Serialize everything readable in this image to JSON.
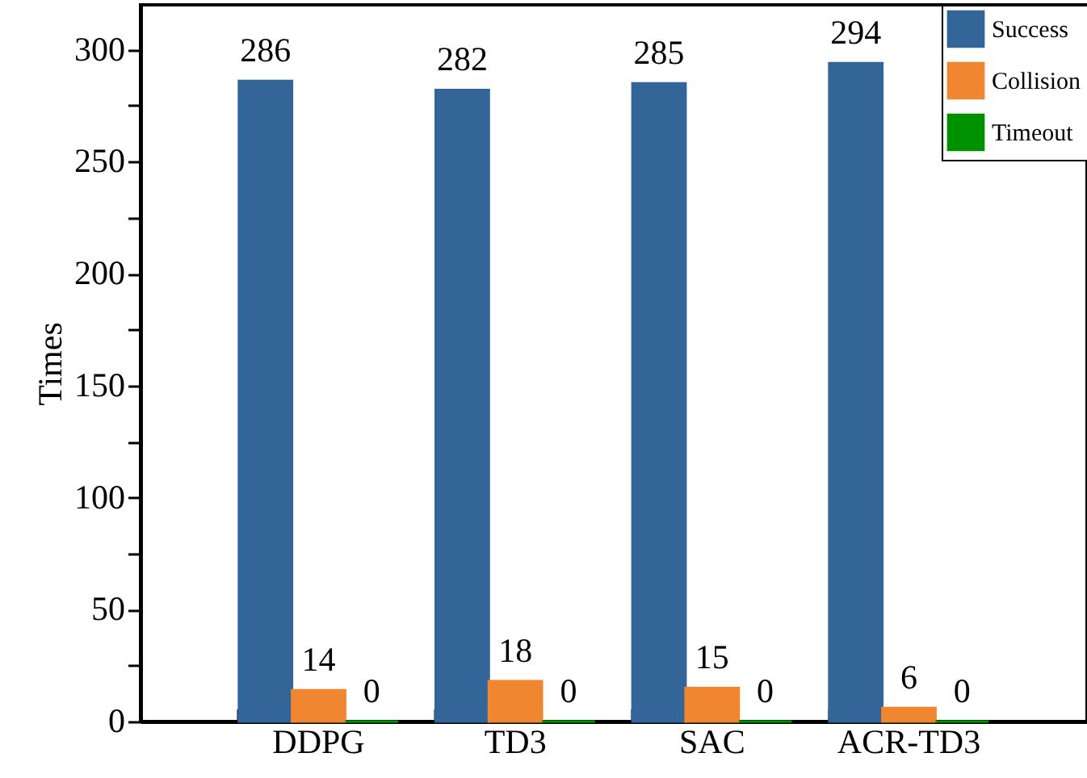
{
  "chart_data": {
    "type": "bar",
    "ylabel": "Times",
    "categories": [
      "DDPG",
      "TD3",
      "SAC",
      "ACR-TD3"
    ],
    "series": [
      {
        "name": "Success",
        "color": "#336598",
        "values": [
          286,
          282,
          285,
          294
        ]
      },
      {
        "name": "Collision",
        "color": "#f0862f",
        "values": [
          14,
          18,
          15,
          6
        ]
      },
      {
        "name": "Timeout",
        "color": "#009100",
        "values": [
          0,
          0,
          0,
          0
        ]
      }
    ],
    "ylim": [
      0,
      320
    ],
    "yticks": [
      0,
      {
        "value": 25,
        "label": null
      },
      50,
      {
        "value": 75,
        "label": null
      },
      100,
      {
        "value": 125,
        "label": null
      },
      150,
      {
        "value": 175,
        "label": null
      },
      200,
      {
        "value": 225,
        "label": null
      },
      250,
      {
        "value": 275,
        "label": null
      },
      300
    ],
    "data_labels": true,
    "legend": "top right",
    "grid": false
  }
}
